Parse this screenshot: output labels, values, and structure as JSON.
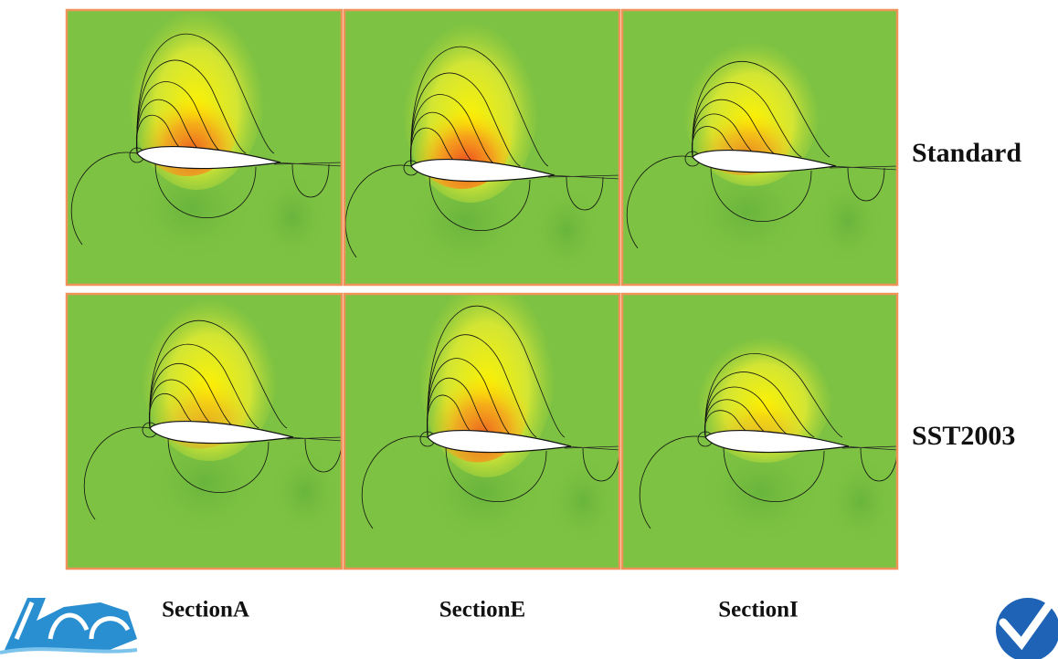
{
  "row_labels": [
    "Standard",
    "SST2003"
  ],
  "column_labels": [
    "SectionA",
    "SectionE",
    "SectionI"
  ]
}
